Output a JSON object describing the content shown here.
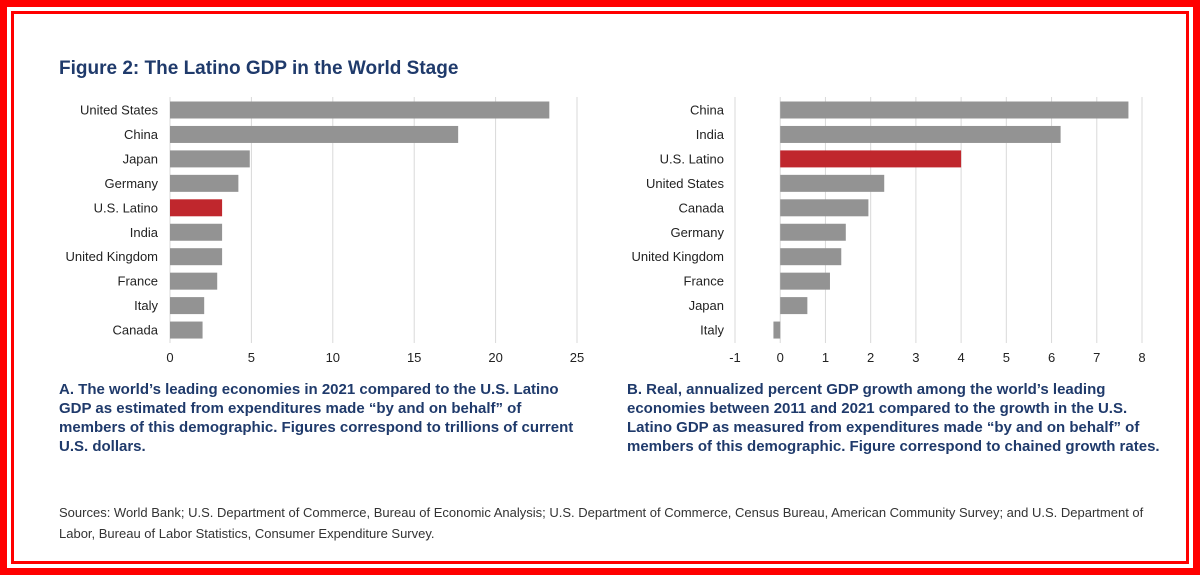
{
  "figure": {
    "title": "Figure 2: The Latino GDP in the World Stage",
    "caption_a": "A. The world’s leading economies in 2021 compared to the U.S. Latino GDP as estimated from expenditures made “by and on behalf” of members of this demographic. Figures correspond to trillions of current U.S. dollars.",
    "caption_b": "B. Real, annualized percent GDP growth among the world’s leading economies between 2011 and 2021 compared to the growth in the U.S. Latino GDP as measured from expenditures made “by and on behalf” of members of this demographic. Figure correspond to chained growth rates.",
    "sources": "Sources: World Bank; U.S. Department of Commerce, Bureau of Economic Analysis; U.S. Department of Commerce, Census Bureau, American Community Survey; and U.S. Department of Labor, Bureau of Labor Statistics, Consumer Expenditure Survey."
  },
  "colors": {
    "bar": "#939393",
    "highlight": "#c0272d",
    "grid": "#d9d9d9",
    "frame": "#ff0000",
    "title": "#1f3a6b"
  },
  "chart_data": [
    {
      "type": "bar",
      "orientation": "horizontal",
      "panel": "A",
      "categories": [
        "United States",
        "China",
        "Japan",
        "Germany",
        "U.S. Latino",
        "India",
        "United Kingdom",
        "France",
        "Italy",
        "Canada"
      ],
      "values": [
        23.3,
        17.7,
        4.9,
        4.2,
        3.2,
        3.2,
        3.2,
        2.9,
        2.1,
        2.0
      ],
      "highlight": "U.S. Latino",
      "xlim": [
        0,
        25
      ],
      "xticks": [
        0,
        5,
        10,
        15,
        20,
        25
      ],
      "xlabel": "",
      "ylabel": "",
      "grid": true
    },
    {
      "type": "bar",
      "orientation": "horizontal",
      "panel": "B",
      "categories": [
        "China",
        "India",
        "U.S. Latino",
        "United States",
        "Canada",
        "Germany",
        "United Kingdom",
        "France",
        "Japan",
        "Italy"
      ],
      "values": [
        7.7,
        6.2,
        4.0,
        2.3,
        1.95,
        1.45,
        1.35,
        1.1,
        0.6,
        -0.15
      ],
      "highlight": "U.S. Latino",
      "xlim": [
        -1,
        8
      ],
      "xticks": [
        -1,
        0,
        1,
        2,
        3,
        4,
        5,
        6,
        7,
        8
      ],
      "xlabel": "",
      "ylabel": "",
      "grid": true
    }
  ]
}
